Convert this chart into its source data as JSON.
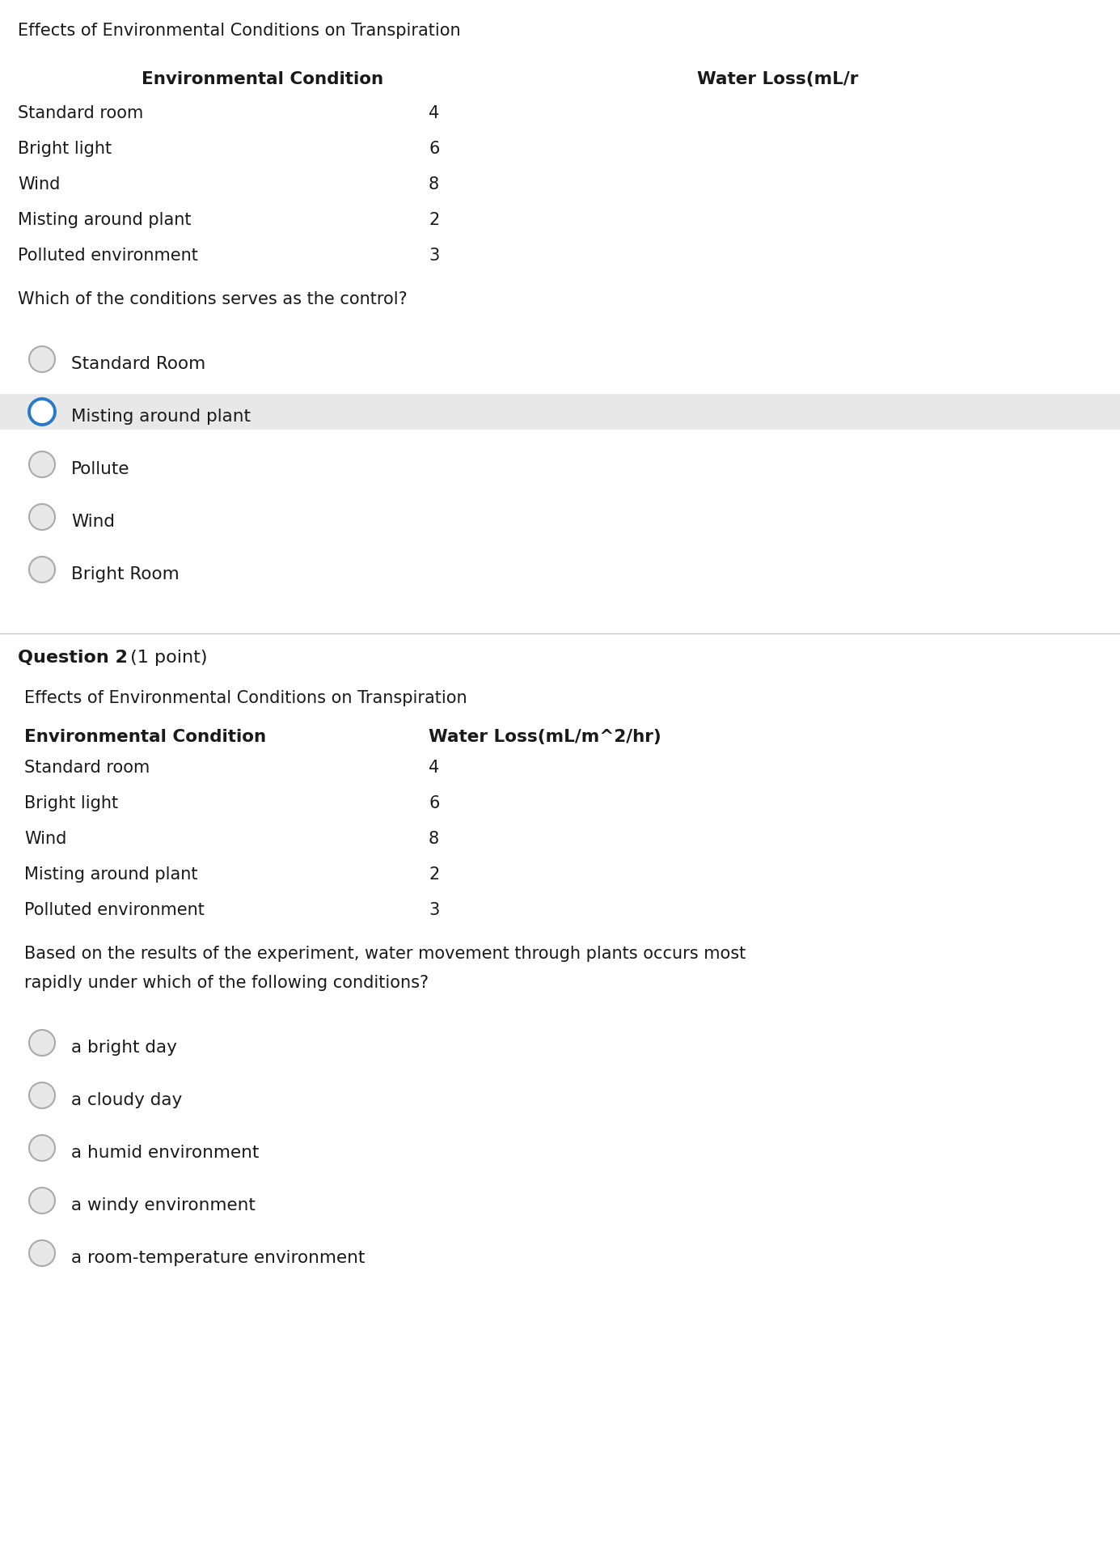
{
  "bg_color": "#ffffff",
  "text_color": "#1a1a1a",
  "q1_table_title": "Effects of Environmental Conditions on Transpiration",
  "q1_col1_header": "Environmental Condition",
  "q1_col2_header": "Water Loss(mL/r",
  "table_rows": [
    [
      "Standard room",
      "4"
    ],
    [
      "Bright light",
      "6"
    ],
    [
      "Wind",
      "8"
    ],
    [
      "Misting around plant",
      "2"
    ],
    [
      "Polluted environment",
      "3"
    ]
  ],
  "q1_question": "Which of the conditions serves as the control?",
  "q1_options": [
    {
      "text": "Standard Room",
      "selected": false,
      "highlighted": false
    },
    {
      "text": "Misting around plant",
      "selected": true,
      "highlighted": true
    },
    {
      "text": "Pollute",
      "selected": false,
      "highlighted": false
    },
    {
      "text": "Wind",
      "selected": false,
      "highlighted": false
    },
    {
      "text": "Bright Room",
      "selected": false,
      "highlighted": false
    }
  ],
  "q2_label": "Question 2",
  "q2_points": " (1 point)",
  "q2_table_title": "Effects of Environmental Conditions on Transpiration",
  "q2_col1_header": "Environmental Condition",
  "q2_col2_header": "Water Loss(mL/m^2/hr)",
  "q2_table_rows": [
    [
      "Standard room",
      "4"
    ],
    [
      "Bright light",
      "6"
    ],
    [
      "Wind",
      "8"
    ],
    [
      "Misting around plant",
      "2"
    ],
    [
      "Polluted environment",
      "3"
    ]
  ],
  "q2_question_line1": "Based on the results of the experiment, water movement through plants occurs most",
  "q2_question_line2": "rapidly under which of the following conditions?",
  "q2_options": [
    {
      "text": "a bright day",
      "selected": false
    },
    {
      "text": "a cloudy day",
      "selected": false
    },
    {
      "text": "a humid environment",
      "selected": false
    },
    {
      "text": "a windy environment",
      "selected": false
    },
    {
      "text": "a room-temperature environment",
      "selected": false
    }
  ],
  "highlight_color": "#e8e8e8",
  "radio_selected_color": "#2979c9",
  "radio_unselected_fill": "#e8e8e8",
  "radio_unselected_edge": "#aaaaaa",
  "divider_color": "#cccccc"
}
